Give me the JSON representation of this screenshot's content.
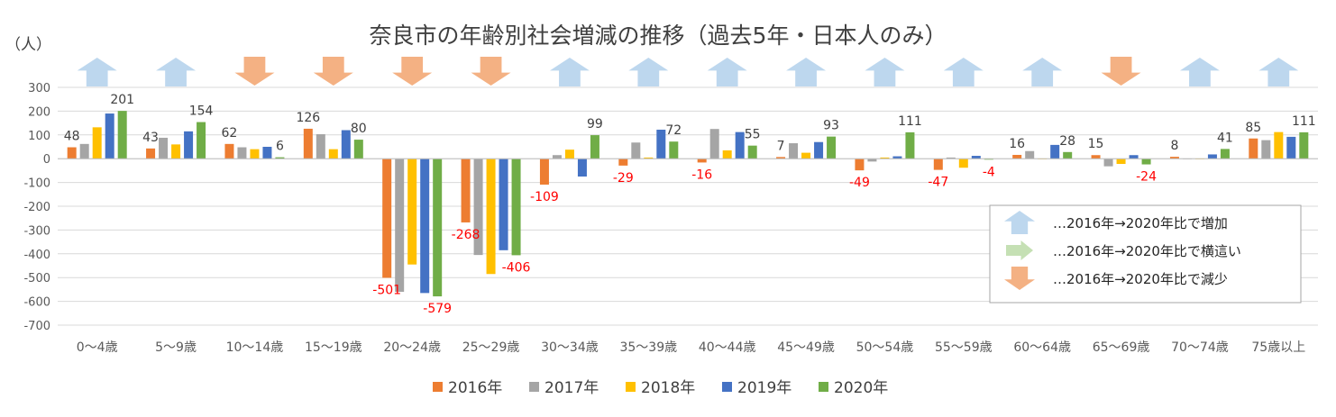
{
  "chart_data": {
    "type": "bar",
    "title": "奈良市の年齢別社会増減の推移（過去5年・日本人のみ）",
    "ylabel": "（人）",
    "ylim": [
      -700,
      300
    ],
    "yticks": [
      "300",
      "200",
      "100",
      "0",
      "-100",
      "-200",
      "-300",
      "-400",
      "-500",
      "-600",
      "-700"
    ],
    "categories": [
      "0～4歳",
      "5～9歳",
      "10～14歳",
      "15～19歳",
      "20～24歳",
      "25～29歳",
      "30～34歳",
      "35～39歳",
      "40～44歳",
      "45～49歳",
      "50～54歳",
      "55～59歳",
      "60～64歳",
      "65～69歳",
      "70～74歳",
      "75歳以上"
    ],
    "series": [
      {
        "name": "2016年",
        "color": "#ED7D31",
        "values": [
          48,
          43,
          62,
          126,
          -501,
          -268,
          -109,
          -29,
          -16,
          7,
          -49,
          -47,
          16,
          15,
          8,
          85
        ]
      },
      {
        "name": "2017年",
        "color": "#A5A5A5",
        "values": [
          62,
          88,
          48,
          103,
          -560,
          -405,
          15,
          68,
          125,
          65,
          -12,
          5,
          32,
          -32,
          0,
          78
        ]
      },
      {
        "name": "2018年",
        "color": "#FFC000",
        "values": [
          132,
          60,
          40,
          40,
          -445,
          -485,
          38,
          5,
          35,
          25,
          5,
          -38,
          0,
          -22,
          0,
          112
        ]
      },
      {
        "name": "2019年",
        "color": "#4472C4",
        "values": [
          190,
          115,
          50,
          120,
          -565,
          -385,
          -75,
          122,
          112,
          70,
          10,
          12,
          58,
          15,
          18,
          92
        ]
      },
      {
        "name": "2020年",
        "color": "#70AD47",
        "values": [
          201,
          154,
          6,
          80,
          -579,
          -406,
          99,
          72,
          55,
          93,
          111,
          -4,
          28,
          -24,
          41,
          111
        ]
      }
    ],
    "data_labels": [
      {
        "category": 0,
        "series": 0,
        "text": "48"
      },
      {
        "category": 0,
        "series": 4,
        "text": "201"
      },
      {
        "category": 1,
        "series": 0,
        "text": "43"
      },
      {
        "category": 1,
        "series": 4,
        "text": "154"
      },
      {
        "category": 2,
        "series": 0,
        "text": "62"
      },
      {
        "category": 2,
        "series": 4,
        "text": "6"
      },
      {
        "category": 3,
        "series": 0,
        "text": "126"
      },
      {
        "category": 3,
        "series": 4,
        "text": "80"
      },
      {
        "category": 4,
        "series": 0,
        "text": "-501"
      },
      {
        "category": 4,
        "series": 4,
        "text": "-579"
      },
      {
        "category": 5,
        "series": 0,
        "text": "-268"
      },
      {
        "category": 5,
        "series": 4,
        "text": "-406"
      },
      {
        "category": 6,
        "series": 0,
        "text": "-109"
      },
      {
        "category": 6,
        "series": 4,
        "text": "99"
      },
      {
        "category": 7,
        "series": 0,
        "text": "-29"
      },
      {
        "category": 7,
        "series": 4,
        "text": "72"
      },
      {
        "category": 8,
        "series": 0,
        "text": "-16"
      },
      {
        "category": 8,
        "series": 4,
        "text": "55"
      },
      {
        "category": 9,
        "series": 0,
        "text": "7"
      },
      {
        "category": 9,
        "series": 4,
        "text": "93"
      },
      {
        "category": 10,
        "series": 0,
        "text": "-49"
      },
      {
        "category": 10,
        "series": 4,
        "text": "111"
      },
      {
        "category": 11,
        "series": 0,
        "text": "-47"
      },
      {
        "category": 11,
        "series": 4,
        "text": "-4"
      },
      {
        "category": 12,
        "series": 0,
        "text": "16"
      },
      {
        "category": 12,
        "series": 4,
        "text": "28"
      },
      {
        "category": 13,
        "series": 0,
        "text": "15"
      },
      {
        "category": 13,
        "series": 4,
        "text": "-24"
      },
      {
        "category": 14,
        "series": 0,
        "text": "8"
      },
      {
        "category": 14,
        "series": 4,
        "text": "41"
      },
      {
        "category": 15,
        "series": 0,
        "text": "85"
      },
      {
        "category": 15,
        "series": 4,
        "text": "111"
      }
    ],
    "trend_arrows": [
      "up",
      "up",
      "down",
      "down",
      "down",
      "down",
      "up",
      "up",
      "up",
      "up",
      "up",
      "up",
      "up",
      "down",
      "up",
      "up"
    ],
    "trend_legend": [
      {
        "kind": "up",
        "color": "#BDD7EE",
        "text": "…2016年→2020年比で増加"
      },
      {
        "kind": "flat",
        "color": "#C5E0B4",
        "text": "…2016年→2020年比で横這い"
      },
      {
        "kind": "down",
        "color": "#F4B183",
        "text": "…2016年→2020年比で減少"
      }
    ],
    "legend_position": "bottom",
    "positive_label_color": "#404040",
    "negative_label_color": "#FF0000"
  }
}
